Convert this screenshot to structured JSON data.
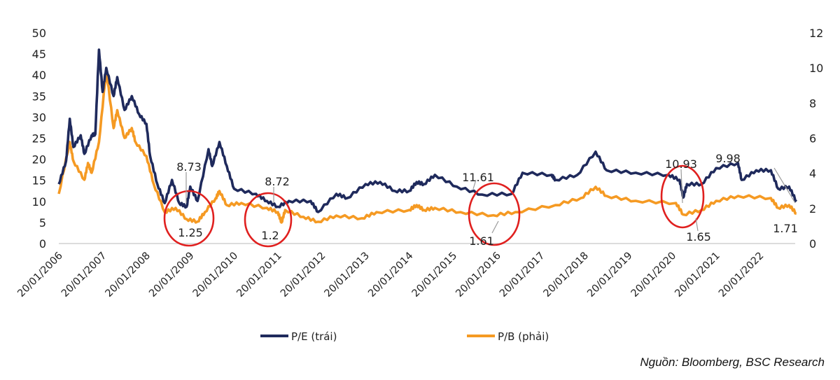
{
  "chart_data": {
    "type": "line",
    "title": "",
    "xlabel": "",
    "ylabel_left": "",
    "ylabel_right": "",
    "ylim_left": [
      0,
      50
    ],
    "ylim_right": [
      0,
      12
    ],
    "yticks_left": [
      "0",
      "5",
      "10",
      "15",
      "20",
      "25",
      "30",
      "35",
      "40",
      "45",
      "50"
    ],
    "yticks_right": [
      "0",
      "2",
      "4",
      "6",
      "8",
      "10",
      "12"
    ],
    "xticks": [
      "20/01/2006",
      "20/01/2007",
      "20/01/2008",
      "20/01/2009",
      "20/01/2010",
      "20/01/2011",
      "20/01/2012",
      "20/01/2013",
      "20/01/2014",
      "20/01/2015",
      "20/01/2016",
      "20/01/2017",
      "20/01/2018",
      "20/01/2019",
      "20/01/2020",
      "20/01/2021",
      "20/01/2022"
    ],
    "grid": false,
    "legend_position": "bottom",
    "series": [
      {
        "name": "P/E (trái)",
        "axis": "left",
        "color": "#1f2a5c",
        "points": [
          [
            "2006-01",
            14.1
          ],
          [
            "2006-03",
            19.6
          ],
          [
            "2006-04",
            29.6
          ],
          [
            "2006-05",
            22.9
          ],
          [
            "2006-07",
            25.7
          ],
          [
            "2006-08",
            21.3
          ],
          [
            "2006-10",
            25.7
          ],
          [
            "2006-11",
            26
          ],
          [
            "2006-12",
            46
          ],
          [
            "2007-01",
            36
          ],
          [
            "2007-02",
            41.7
          ],
          [
            "2007-04",
            35
          ],
          [
            "2007-05",
            39.5
          ],
          [
            "2007-07",
            31.7
          ],
          [
            "2007-09",
            35
          ],
          [
            "2007-11",
            30.7
          ],
          [
            "2008-01",
            28.4
          ],
          [
            "2008-02",
            20.8
          ],
          [
            "2008-04",
            14.1
          ],
          [
            "2008-06",
            9.6
          ],
          [
            "2008-08",
            15.1
          ],
          [
            "2008-10",
            9.6
          ],
          [
            "2008-12",
            8.73
          ],
          [
            "2009-01",
            13.5
          ],
          [
            "2009-03",
            10.1
          ],
          [
            "2009-06",
            22.4
          ],
          [
            "2009-07",
            18.4
          ],
          [
            "2009-09",
            24.1
          ],
          [
            "2009-11",
            18.4
          ],
          [
            "2010-01",
            13
          ],
          [
            "2010-07",
            11.8
          ],
          [
            "2010-10",
            10.1
          ],
          [
            "2011-01",
            8.72
          ],
          [
            "2011-04",
            10.1
          ],
          [
            "2011-10",
            10.1
          ],
          [
            "2011-12",
            7.5
          ],
          [
            "2012-05",
            11.8
          ],
          [
            "2012-08",
            10.8
          ],
          [
            "2013-01",
            14.1
          ],
          [
            "2013-05",
            14.6
          ],
          [
            "2013-09",
            12.5
          ],
          [
            "2014-01",
            12.5
          ],
          [
            "2014-03",
            14.6
          ],
          [
            "2014-05",
            14.1
          ],
          [
            "2014-08",
            16.3
          ],
          [
            "2015-02",
            13.5
          ],
          [
            "2015-09",
            11.61
          ],
          [
            "2016-05",
            11.8
          ],
          [
            "2016-08",
            16.8
          ],
          [
            "2017-04",
            16.3
          ],
          [
            "2017-05",
            15.1
          ],
          [
            "2017-11",
            16.3
          ],
          [
            "2018-04",
            21.8
          ],
          [
            "2018-07",
            17.4
          ],
          [
            "2019-03",
            16.8
          ],
          [
            "2019-12",
            16.3
          ],
          [
            "2020-03",
            15.1
          ],
          [
            "2020-04",
            10.93
          ],
          [
            "2020-05",
            14.1
          ],
          [
            "2020-09",
            14.1
          ],
          [
            "2021-01",
            17.9
          ],
          [
            "2021-07",
            19.1
          ],
          [
            "2021-08",
            15.1
          ],
          [
            "2021-12",
            17.4
          ],
          [
            "2022-04",
            17.4
          ],
          [
            "2022-06",
            13
          ],
          [
            "2022-09",
            13.5
          ],
          [
            "2022-11",
            9.98
          ]
        ]
      },
      {
        "name": "P/B (phải)",
        "axis": "right",
        "color": "#f59a23",
        "points": [
          [
            "2006-01",
            2.83
          ],
          [
            "2006-04",
            5.78
          ],
          [
            "2006-05",
            4.7
          ],
          [
            "2006-08",
            3.63
          ],
          [
            "2006-09",
            4.59
          ],
          [
            "2006-10",
            4.03
          ],
          [
            "2006-12",
            5.78
          ],
          [
            "2007-02",
            9.9
          ],
          [
            "2007-04",
            6.58
          ],
          [
            "2007-05",
            7.6
          ],
          [
            "2007-07",
            6.02
          ],
          [
            "2007-09",
            6.58
          ],
          [
            "2007-10",
            5.78
          ],
          [
            "2008-01",
            4.98
          ],
          [
            "2008-03",
            3.39
          ],
          [
            "2008-06",
            1.79
          ],
          [
            "2008-09",
            2.03
          ],
          [
            "2008-12",
            1.39
          ],
          [
            "2009-03",
            1.25
          ],
          [
            "2009-05",
            1.79
          ],
          [
            "2009-08",
            2.59
          ],
          [
            "2009-09",
            2.99
          ],
          [
            "2009-11",
            2.19
          ],
          [
            "2010-03",
            2.31
          ],
          [
            "2010-10",
            2.03
          ],
          [
            "2011-01",
            1.79
          ],
          [
            "2011-02",
            1.2
          ],
          [
            "2011-03",
            1.91
          ],
          [
            "2011-08",
            1.52
          ],
          [
            "2011-12",
            1.24
          ],
          [
            "2012-05",
            1.59
          ],
          [
            "2012-12",
            1.44
          ],
          [
            "2013-04",
            1.79
          ],
          [
            "2014-01",
            1.91
          ],
          [
            "2014-03",
            2.19
          ],
          [
            "2014-05",
            1.91
          ],
          [
            "2014-08",
            2.03
          ],
          [
            "2015-03",
            1.79
          ],
          [
            "2015-12",
            1.61
          ],
          [
            "2016-06",
            1.79
          ],
          [
            "2017-05",
            2.19
          ],
          [
            "2017-12",
            2.59
          ],
          [
            "2018-04",
            3.23
          ],
          [
            "2018-07",
            2.71
          ],
          [
            "2019-03",
            2.43
          ],
          [
            "2020-02",
            2.31
          ],
          [
            "2020-04",
            1.65
          ],
          [
            "2020-09",
            1.91
          ],
          [
            "2021-01",
            2.43
          ],
          [
            "2021-07",
            2.71
          ],
          [
            "2022-04",
            2.59
          ],
          [
            "2022-06",
            2.03
          ],
          [
            "2022-09",
            2.19
          ],
          [
            "2022-11",
            1.71
          ]
        ]
      }
    ],
    "annotations": [
      "8.73",
      "1.25",
      "8.72",
      "1.2",
      "11.61",
      "1.61",
      "10.93",
      "1.65",
      "9.98",
      "1.71"
    ],
    "highlight_color": "#e0201f"
  },
  "source": "Nguồn: Bloomberg, BSC Research"
}
